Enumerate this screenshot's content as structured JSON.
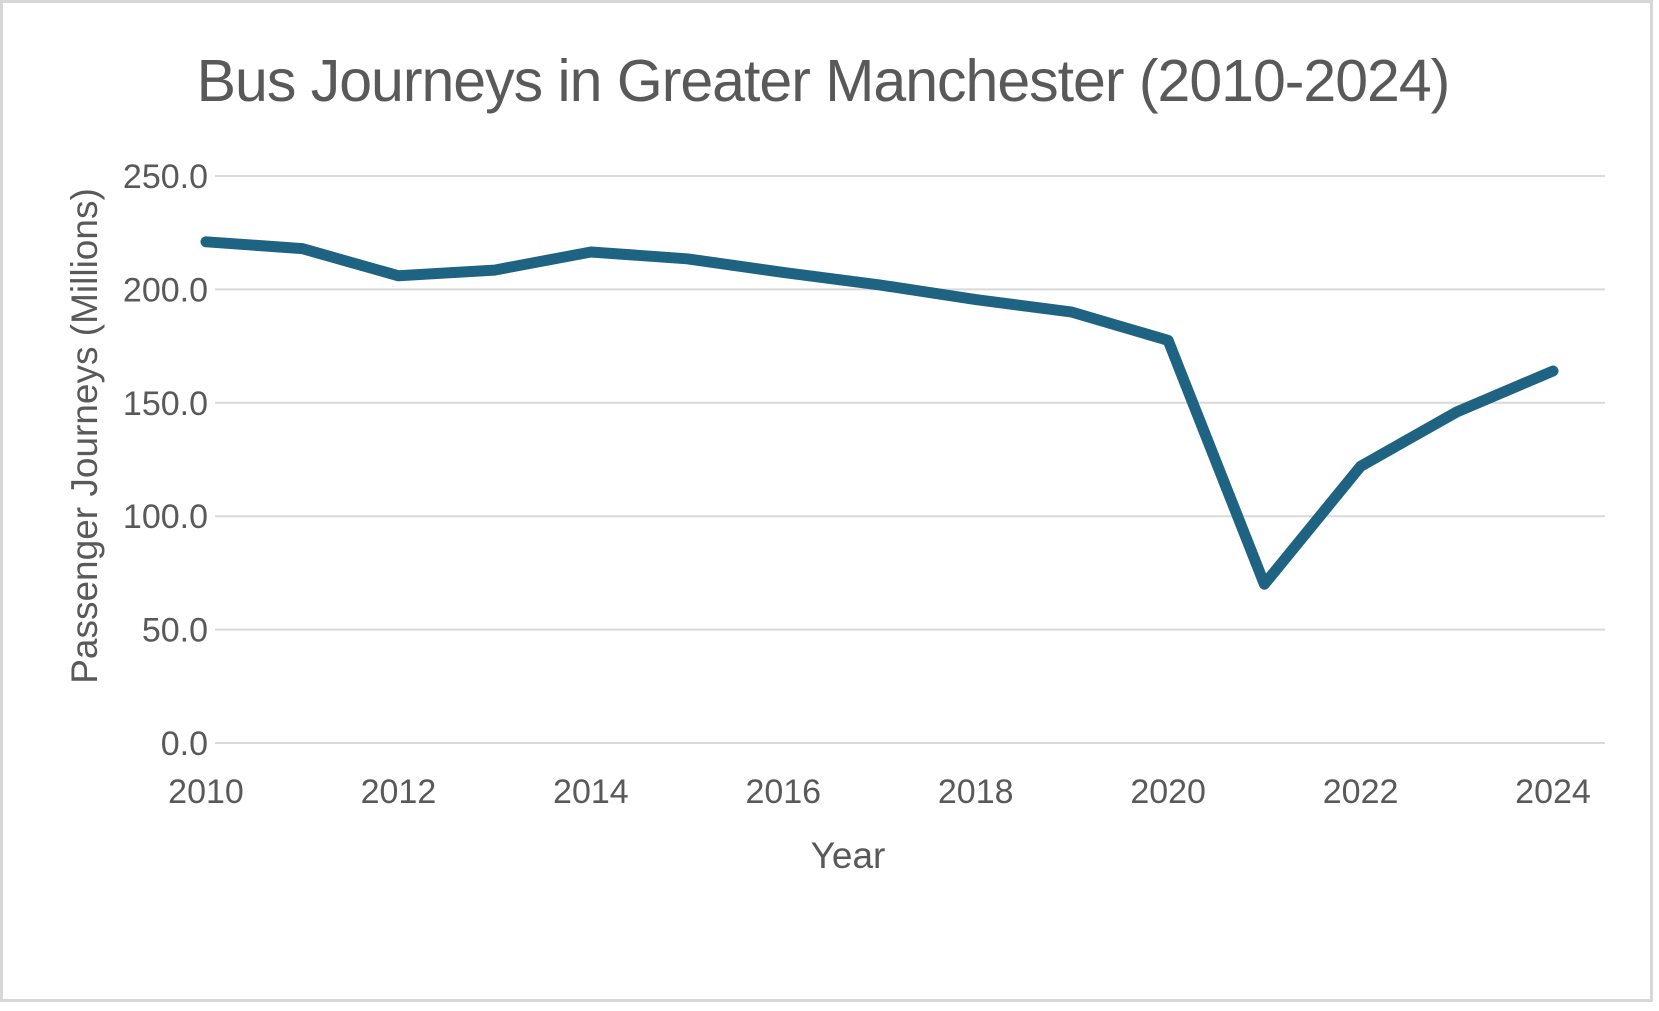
{
  "chart": {
    "title": "Bus Journeys in Greater Manchester (2010-2024)",
    "y_axis_title": "Passenger Journeys (Millions)",
    "x_axis_title": "Year"
  },
  "chart_data": {
    "type": "line",
    "title": "Bus Journeys in Greater Manchester (2010-2024)",
    "xlabel": "Year",
    "ylabel": "Passenger Journeys (Millions)",
    "x": [
      2010,
      2011,
      2012,
      2013,
      2014,
      2015,
      2016,
      2017,
      2018,
      2019,
      2020,
      2021,
      2022,
      2023,
      2024
    ],
    "series": [
      {
        "name": "Passenger Journeys",
        "values": [
          221.0,
          218.0,
          206.0,
          208.5,
          216.5,
          213.5,
          207.5,
          202.0,
          195.5,
          190.0,
          177.5,
          70.0,
          122.0,
          146.0,
          164.0
        ]
      }
    ],
    "x_tick_labels": [
      "2010",
      "2012",
      "2014",
      "2016",
      "2018",
      "2020",
      "2022",
      "2024"
    ],
    "y_tick_labels": [
      "0.0",
      "50.0",
      "100.0",
      "150.0",
      "200.0",
      "250.0"
    ],
    "y_tick_values": [
      0,
      50,
      100,
      150,
      200,
      250
    ],
    "xlim": [
      2010,
      2024
    ],
    "ylim": [
      0,
      250
    ],
    "grid": "horizontal-only",
    "legend": "none",
    "colors": {
      "line": "#1E6382",
      "gridline": "#D9D9D9",
      "text": "#595959",
      "frame_border": "#D7D7D7",
      "background": "#FFFFFF"
    }
  }
}
